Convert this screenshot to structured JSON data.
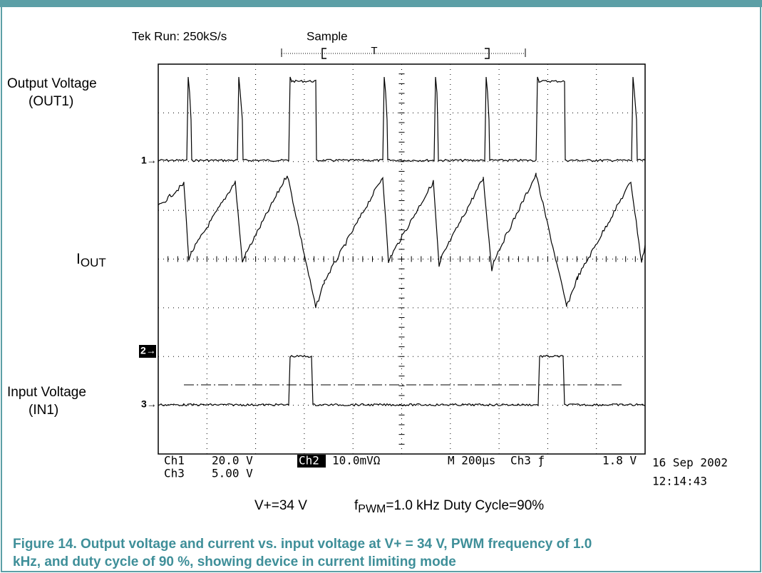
{
  "scope": {
    "status": "Tek Run: 250kS/s",
    "mode": "Sample",
    "trigger": "T",
    "channels": {
      "out": [
        "Output Voltage",
        "(OUT1)"
      ],
      "iout": {
        "main": "I",
        "sub": "OUT"
      },
      "in": [
        "Input Voltage",
        "(IN1)"
      ]
    },
    "markers": [
      "1→",
      "2→",
      "3→"
    ],
    "readout": {
      "ch1": "Ch1",
      "ch1_scale": "20.0 V",
      "ch2": "Ch2",
      "ch2_scale": "10.0mVΩ",
      "time": "M 200µs",
      "trig": "Ch3 ƒ",
      "trig_level": "1.8 V",
      "ch3": "Ch3",
      "ch3_scale": "5.00 V",
      "date": "16 Sep 2002",
      "clock": "12:14:43"
    }
  },
  "conditions": {
    "vplus": "V+=34 V",
    "f": "f",
    "f_sub": "PWM",
    "rest": "=1.0 kHz   Duty Cycle=90%"
  },
  "caption": [
    "Figure 14.  Output voltage and current vs. input voltage at V+ = 34 V, PWM frequency of 1.0",
    "kHz, and duty cycle of 90 %, showing device in current limiting mode"
  ]
}
